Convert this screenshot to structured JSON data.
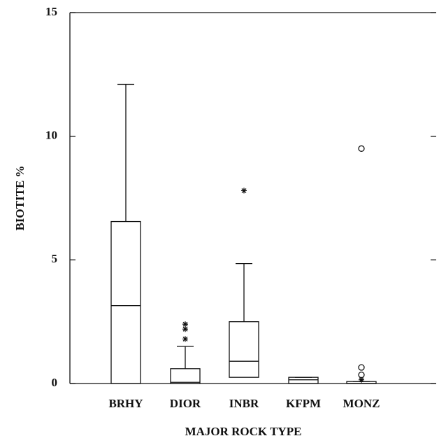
{
  "chart_data": {
    "type": "box",
    "x_label": "MAJOR ROCK TYPE",
    "y_label": "BIOTITE %",
    "categories": [
      "BRHY",
      "DIOR",
      "INBR",
      "KFPM",
      "MONZ"
    ],
    "boxes": [
      {
        "min": 0,
        "q1": 0,
        "median": 3.15,
        "q3": 6.55,
        "max": 12.1,
        "outliers": [],
        "far_outliers": []
      },
      {
        "min": 0,
        "q1": 0,
        "median": 0.05,
        "q3": 0.6,
        "max": 1.5,
        "outliers": [
          1.8,
          2.2,
          2.4
        ],
        "far_outliers": []
      },
      {
        "min": 0.25,
        "q1": 0.25,
        "median": 0.9,
        "q3": 2.5,
        "max": 4.85,
        "outliers": [
          7.8
        ],
        "far_outliers": []
      },
      {
        "min": 0,
        "q1": 0,
        "median": 0.15,
        "q3": 0.25,
        "max": 0.25,
        "outliers": [],
        "far_outliers": []
      },
      {
        "min": 0,
        "q1": 0,
        "median": 0,
        "q3": 0.08,
        "max": 0.08,
        "outliers": [
          0.15
        ],
        "far_outliers": [
          0.35,
          0.65,
          9.5
        ]
      }
    ],
    "ylim": [
      0,
      15
    ],
    "yticks": [
      0,
      5,
      10,
      15
    ]
  }
}
